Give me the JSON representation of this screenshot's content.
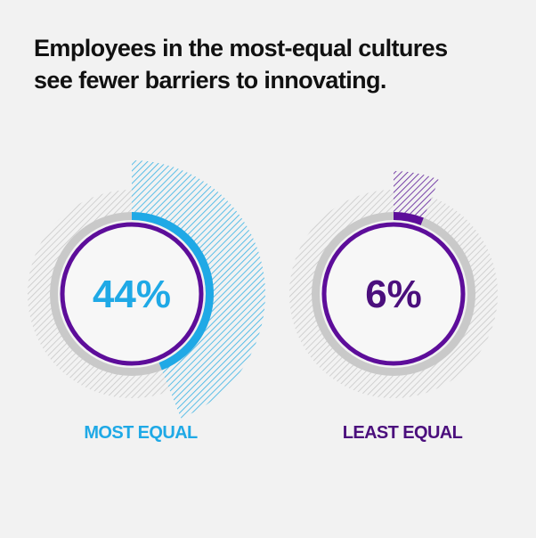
{
  "headline": {
    "line1": "Employees in the most-equal cultures",
    "line2": "see fewer barriers to innovating."
  },
  "colors": {
    "background": "#f2f2f2",
    "most_equal": "#1fa9e6",
    "least_equal": "#4b0f7d",
    "ring_outline": "#5d0d9a",
    "track_gray": "#c9c9c9"
  },
  "chart_data": {
    "type": "pie",
    "title": "Employees in the most-equal cultures see fewer barriers to innovating.",
    "unit": "%",
    "series": [
      {
        "name": "MOST EQUAL",
        "value": 44,
        "label": "44%"
      },
      {
        "name": "LEAST EQUAL",
        "value": 6,
        "label": "6%"
      }
    ]
  }
}
